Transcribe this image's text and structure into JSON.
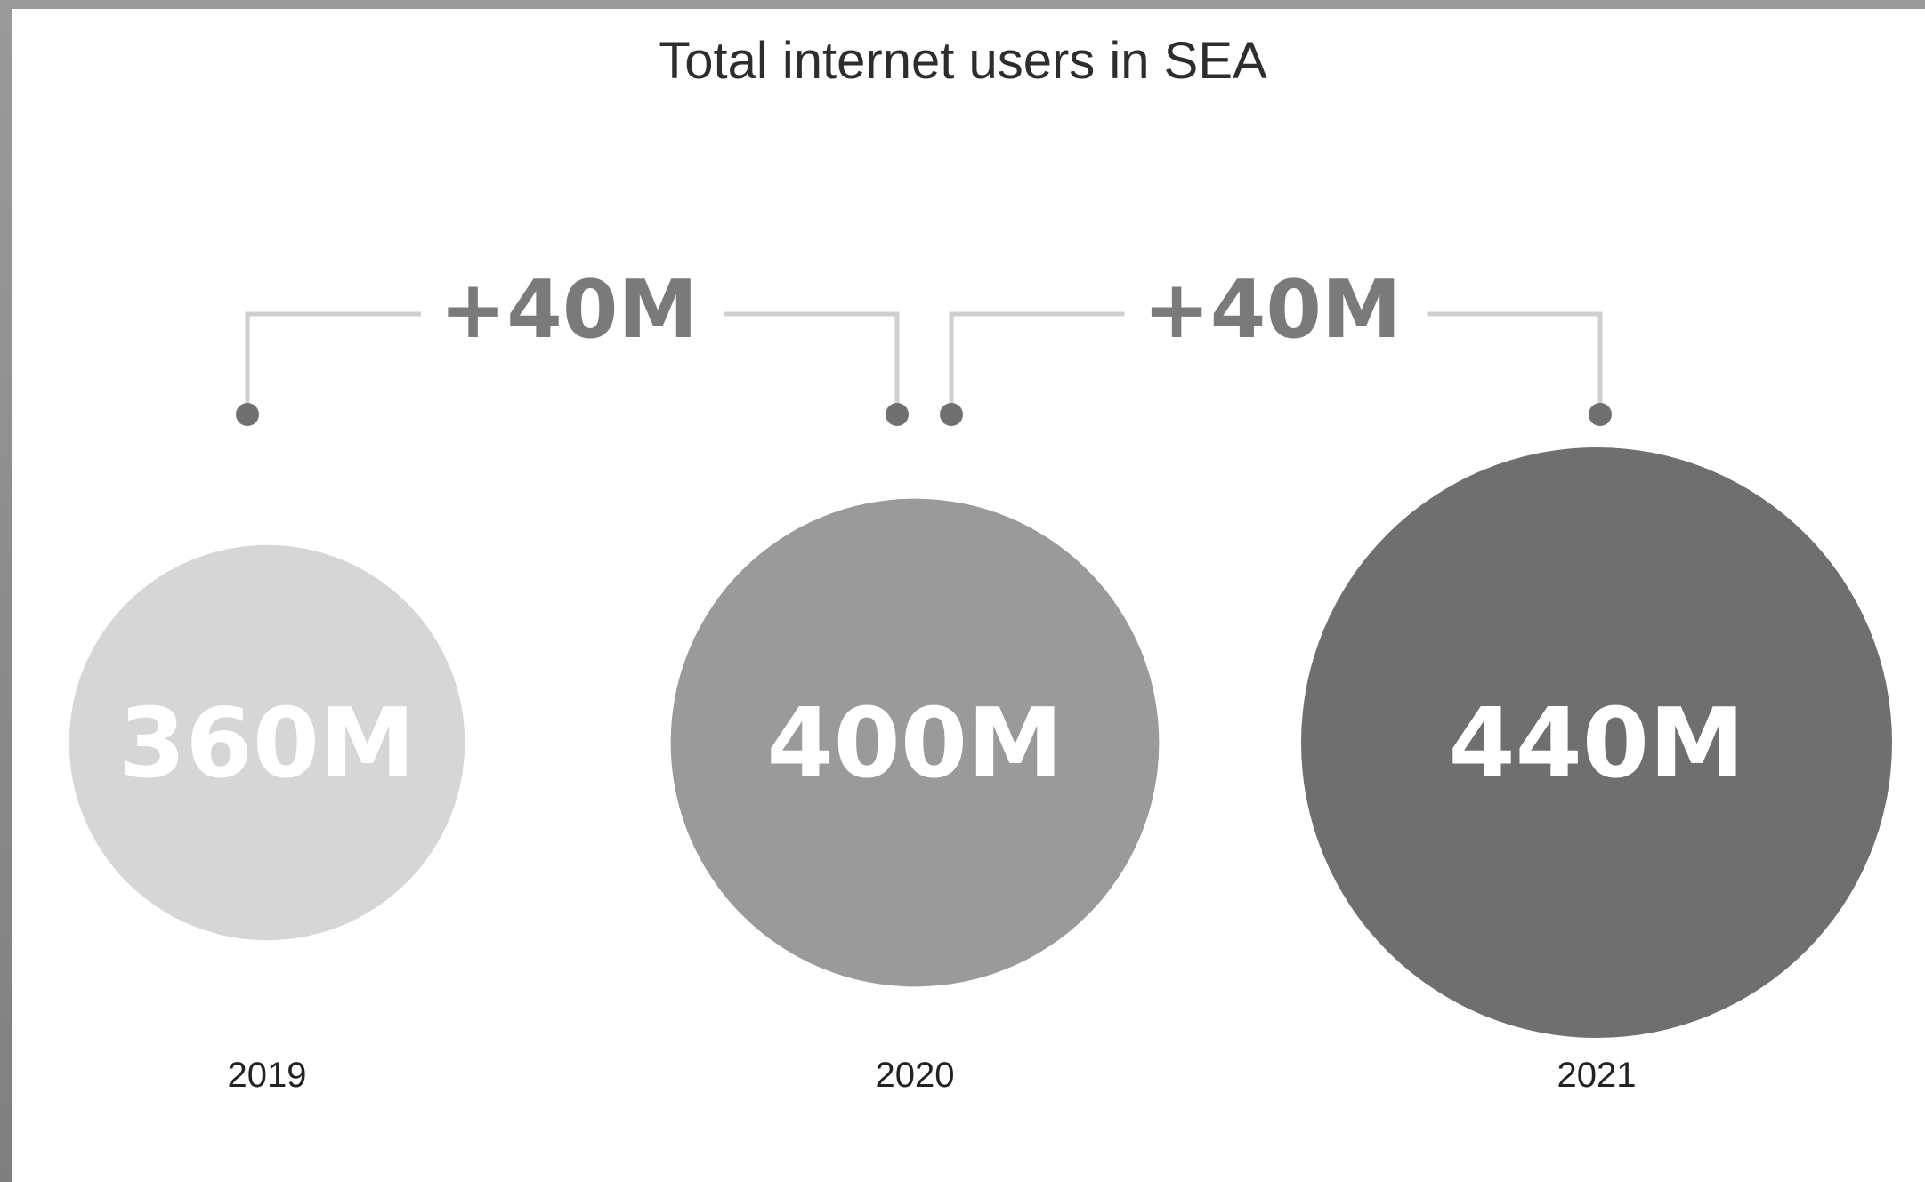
{
  "chart_data": {
    "type": "bubble",
    "title": "Total internet users in SEA",
    "unit": "M",
    "categories": [
      "2019",
      "2020",
      "2021"
    ],
    "values": [
      360,
      400,
      440
    ],
    "value_labels": [
      "360M",
      "400M",
      "440M"
    ],
    "colors": [
      "#d6d6d6",
      "#9a9a9a",
      "#6f6f6f"
    ],
    "deltas": [
      {
        "from": "2019",
        "to": "2020",
        "label": "+40M"
      },
      {
        "from": "2020",
        "to": "2021",
        "label": "+40M"
      }
    ]
  }
}
